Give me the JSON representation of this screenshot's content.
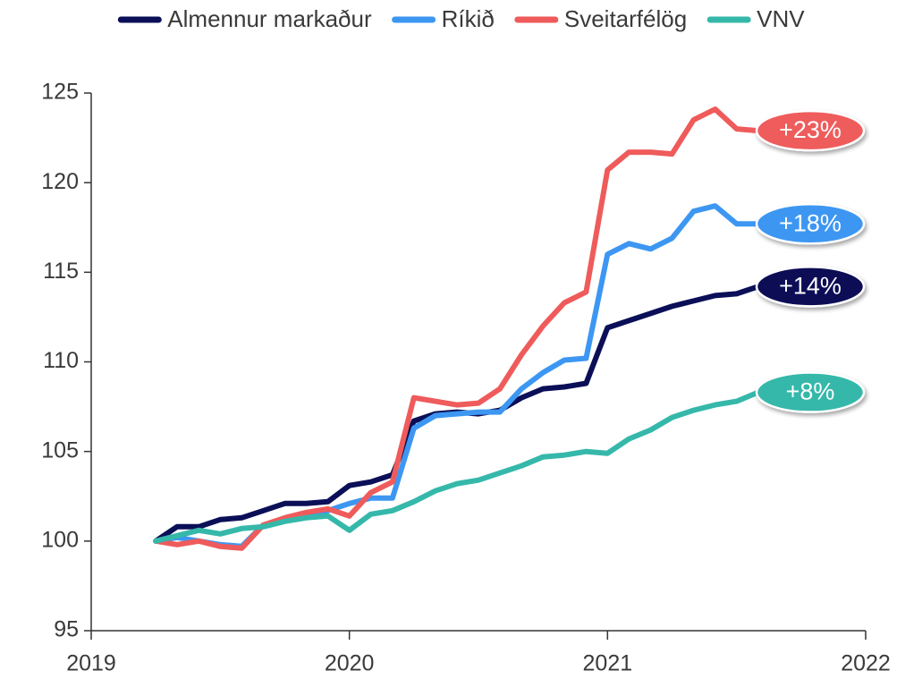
{
  "chart_data": {
    "type": "line",
    "x": [
      2019.25,
      2019.333,
      2019.417,
      2019.5,
      2019.583,
      2019.667,
      2019.75,
      2019.833,
      2019.917,
      2020,
      2020.083,
      2020.167,
      2020.25,
      2020.333,
      2020.417,
      2020.5,
      2020.583,
      2020.667,
      2020.75,
      2020.833,
      2020.917,
      2021,
      2021.083,
      2021.167,
      2021.25,
      2021.333,
      2021.417,
      2021.5,
      2021.583
    ],
    "xlim": [
      2019,
      2022
    ],
    "xticks": [
      2019,
      2020,
      2021,
      2022
    ],
    "ylim": [
      95,
      125
    ],
    "yticks": [
      95,
      100,
      105,
      110,
      115,
      120,
      125
    ],
    "legend": "top",
    "series": [
      {
        "name": "Almennur markaður",
        "color": "#0b0f57",
        "end_label": "+14%",
        "values": [
          100,
          100.8,
          100.8,
          101.2,
          101.3,
          101.7,
          102.1,
          102.1,
          102.2,
          103.1,
          103.3,
          103.7,
          106.7,
          107.1,
          107.2,
          107.1,
          107.3,
          108.0,
          108.5,
          108.6,
          108.8,
          111.9,
          112.3,
          112.7,
          113.1,
          113.4,
          113.7,
          113.8,
          114.2
        ]
      },
      {
        "name": "Ríkið",
        "color": "#3d97f2",
        "end_label": "+18%",
        "values": [
          100,
          100.2,
          100.0,
          99.8,
          99.7,
          100.9,
          101.2,
          101.5,
          101.7,
          102.1,
          102.4,
          102.4,
          106.3,
          107.0,
          107.1,
          107.2,
          107.2,
          108.5,
          109.4,
          110.1,
          110.2,
          116.0,
          116.6,
          116.3,
          116.9,
          118.4,
          118.7,
          117.7,
          117.7
        ]
      },
      {
        "name": "Sveitarfélög",
        "color": "#ef5b5b",
        "end_label": "+23%",
        "values": [
          100,
          99.8,
          100.0,
          99.7,
          99.6,
          100.9,
          101.3,
          101.6,
          101.8,
          101.4,
          102.7,
          103.3,
          108.0,
          107.8,
          107.6,
          107.7,
          108.5,
          110.4,
          112.0,
          113.3,
          113.9,
          120.7,
          121.7,
          121.7,
          121.6,
          123.5,
          124.1,
          123.0,
          122.9
        ]
      },
      {
        "name": "VNV",
        "color": "#35b8aa",
        "end_label": "+8%",
        "values": [
          100,
          100.3,
          100.6,
          100.4,
          100.7,
          100.8,
          101.1,
          101.3,
          101.4,
          100.6,
          101.5,
          101.7,
          102.2,
          102.8,
          103.2,
          103.4,
          103.8,
          104.2,
          104.7,
          104.8,
          105.0,
          104.9,
          105.7,
          106.2,
          106.9,
          107.3,
          107.6,
          107.8,
          108.3
        ]
      }
    ]
  }
}
